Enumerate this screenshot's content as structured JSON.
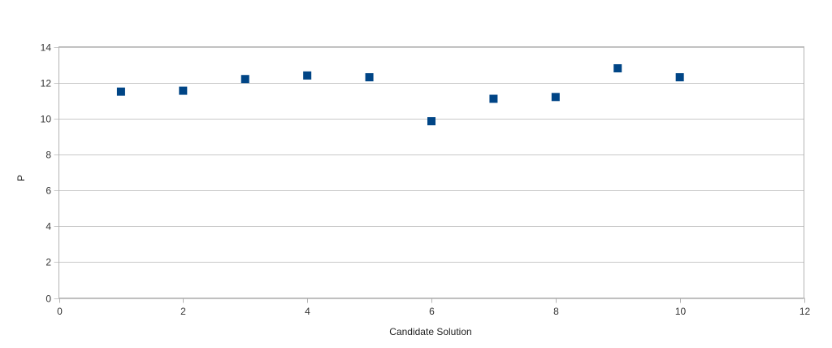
{
  "chart_data": {
    "type": "scatter",
    "title": "",
    "xlabel": "Candidate Solution",
    "ylabel": "P",
    "xlim": [
      0,
      12
    ],
    "ylim": [
      0,
      14
    ],
    "xticks": [
      0,
      2,
      4,
      6,
      8,
      10,
      12
    ],
    "yticks": [
      0,
      2,
      4,
      6,
      8,
      10,
      12,
      14
    ],
    "grid": "horizontal",
    "legend": "none",
    "marker": "square",
    "series": [
      {
        "color": "#004586",
        "x": [
          1,
          2,
          3,
          4,
          5,
          6,
          7,
          8,
          9,
          10
        ],
        "y": [
          11.5,
          11.55,
          12.2,
          12.4,
          12.3,
          9.85,
          11.1,
          11.2,
          12.8,
          12.3
        ]
      }
    ]
  }
}
